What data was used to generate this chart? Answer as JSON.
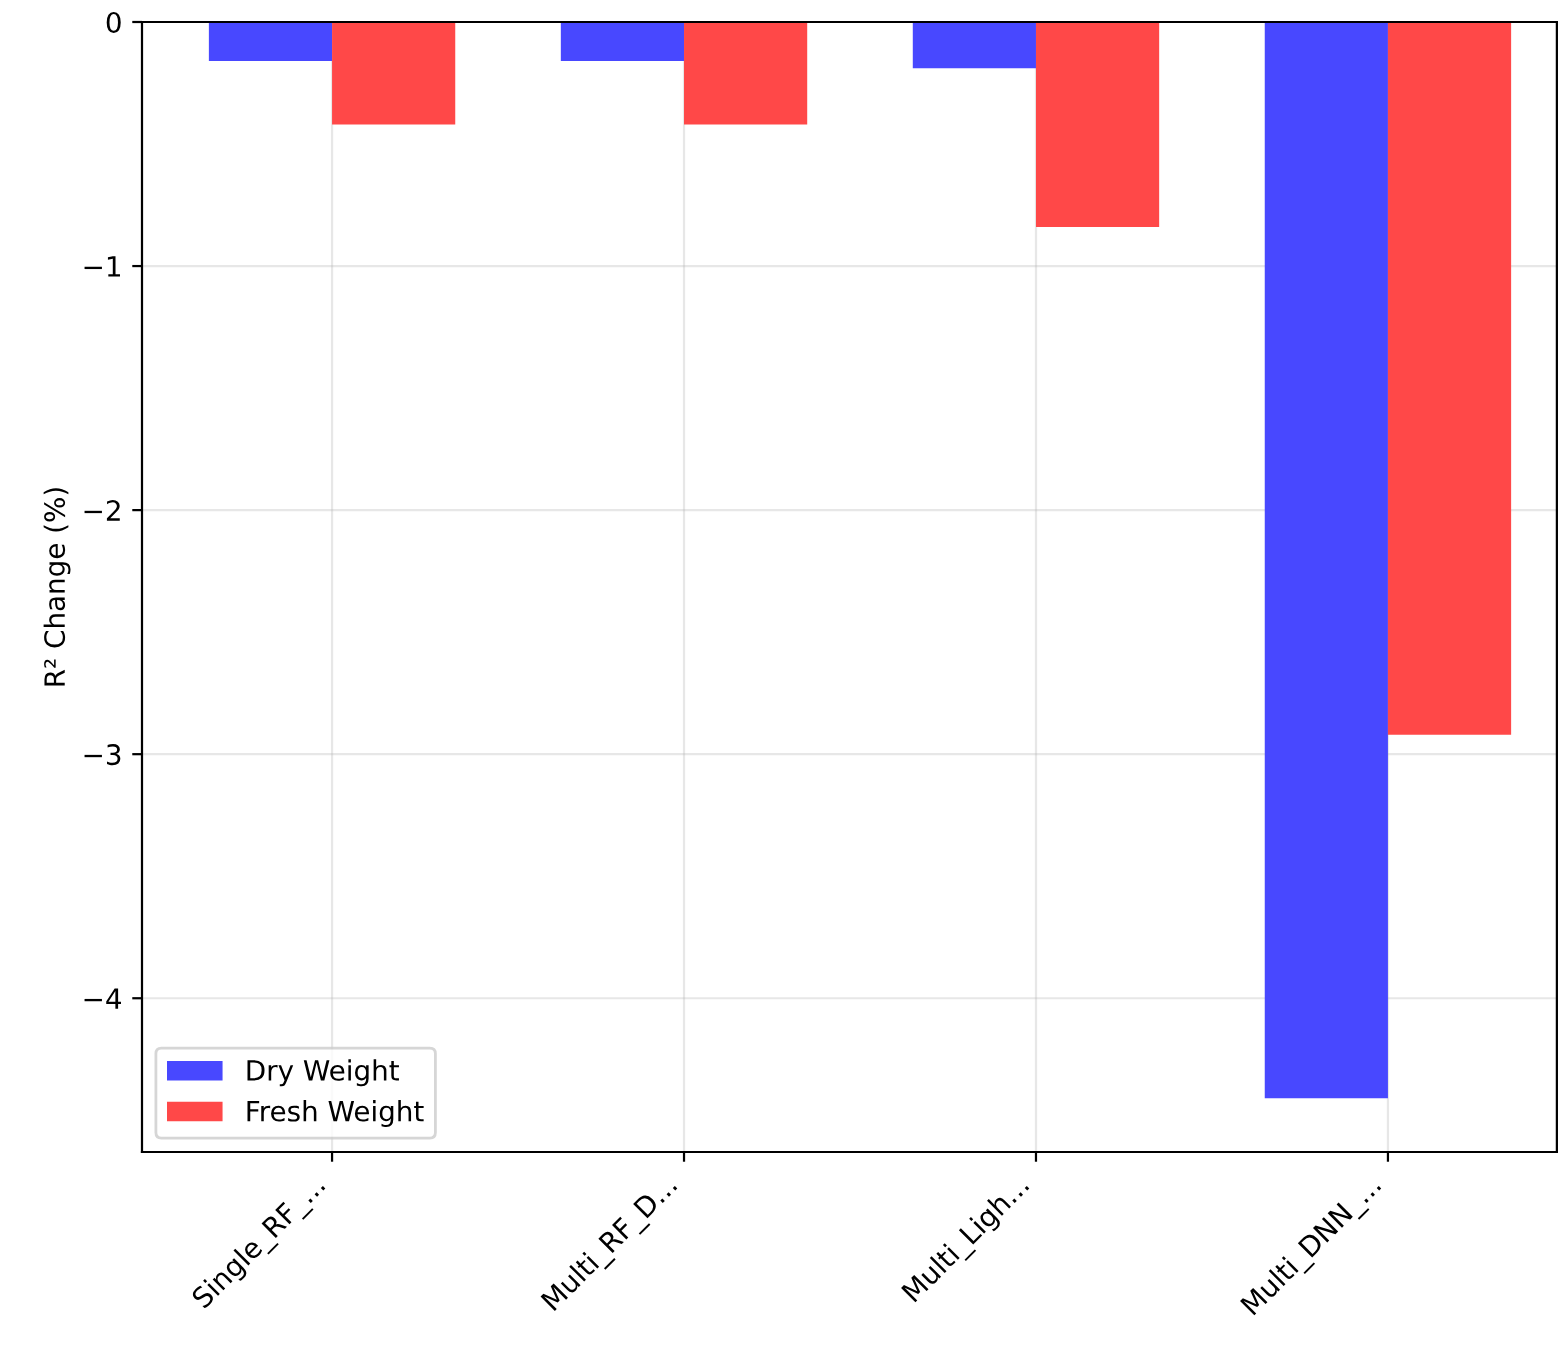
{
  "chart_data": {
    "type": "bar",
    "ylabel": "R² Change (%)",
    "categories": [
      "Single_RF_...",
      "Multi_RF_D...",
      "Multi_Ligh...",
      "Multi_DNN_..."
    ],
    "series": [
      {
        "name": "Dry Weight",
        "color": "#4848ff",
        "values": [
          -0.16,
          -0.16,
          -0.19,
          -4.41
        ]
      },
      {
        "name": "Fresh Weight",
        "color": "#ff4848",
        "values": [
          -0.42,
          -0.42,
          -0.84,
          -2.92
        ]
      }
    ],
    "ylim": [
      -4.63,
      0
    ],
    "yticks": [
      {
        "value": -4,
        "label": "−4"
      },
      {
        "value": -3,
        "label": "−3"
      },
      {
        "value": -2,
        "label": "−2"
      },
      {
        "value": -1,
        "label": "−1"
      },
      0
    ],
    "grid": true,
    "legend": "bottom left"
  }
}
